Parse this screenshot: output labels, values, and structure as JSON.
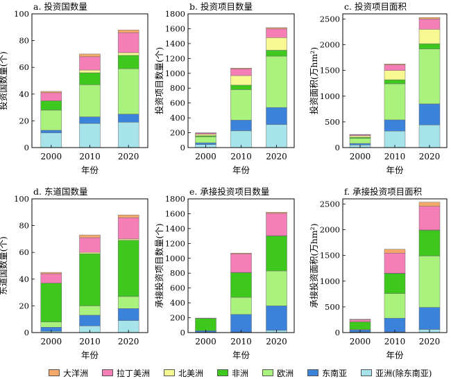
{
  "colors": {
    "oceania": "#f4a96b",
    "latin_america": "#f57eb6",
    "north_america": "#f8f893",
    "africa": "#3ec81e",
    "europe": "#a9f27e",
    "southeast_asia": "#3a82da",
    "asia_ex_sea": "#a6e4ea"
  },
  "legend": [
    {
      "label": "大洋洲",
      "color_key": "oceania"
    },
    {
      "label": "拉丁美洲",
      "color_key": "latin_america"
    },
    {
      "label": "北美洲",
      "color_key": "north_america"
    },
    {
      "label": "非洲",
      "color_key": "africa"
    },
    {
      "label": "欧洲",
      "color_key": "europe"
    },
    {
      "label": "东南亚",
      "color_key": "southeast_asia"
    },
    {
      "label": "亚洲(除东南亚)",
      "color_key": "asia_ex_sea"
    }
  ],
  "chart_data": [
    {
      "type": "bar",
      "stacked": true,
      "title": "a. 投资国数量",
      "xlabel": "年份",
      "ylabel": "投资国数量(个)",
      "categories": [
        "2000",
        "2010",
        "2020"
      ],
      "ylim": [
        0,
        100
      ],
      "yticks": [
        0,
        20,
        40,
        60,
        80,
        100
      ],
      "series": [
        {
          "name": "亚洲(除东南亚)",
          "color_key": "asia_ex_sea",
          "values": [
            11,
            18,
            19
          ]
        },
        {
          "name": "东南亚",
          "color_key": "southeast_asia",
          "values": [
            2,
            5,
            6
          ]
        },
        {
          "name": "欧洲",
          "color_key": "europe",
          "values": [
            15,
            24,
            34
          ]
        },
        {
          "name": "非洲",
          "color_key": "africa",
          "values": [
            7,
            9,
            10
          ]
        },
        {
          "name": "北美洲",
          "color_key": "north_america",
          "values": [
            0,
            2,
            2
          ]
        },
        {
          "name": "拉丁美洲",
          "color_key": "latin_america",
          "values": [
            6,
            10,
            15
          ]
        },
        {
          "name": "大洋洲",
          "color_key": "oceania",
          "values": [
            1,
            2,
            2
          ]
        }
      ]
    },
    {
      "type": "bar",
      "stacked": true,
      "title": "b. 投资项目数量",
      "xlabel": "年份",
      "ylabel": "投资项目数量(个)",
      "categories": [
        "2000",
        "2010",
        "2020"
      ],
      "ylim": [
        0,
        1800
      ],
      "yticks": [
        0,
        200,
        400,
        600,
        800,
        1000,
        1200,
        1400,
        1600,
        1800
      ],
      "series": [
        {
          "name": "亚洲(除东南亚)",
          "color_key": "asia_ex_sea",
          "values": [
            40,
            225,
            310
          ]
        },
        {
          "name": "东南亚",
          "color_key": "southeast_asia",
          "values": [
            25,
            145,
            230
          ]
        },
        {
          "name": "欧洲",
          "color_key": "europe",
          "values": [
            80,
            410,
            690
          ]
        },
        {
          "name": "非洲",
          "color_key": "africa",
          "values": [
            15,
            60,
            80
          ]
        },
        {
          "name": "北美洲",
          "color_key": "north_america",
          "values": [
            20,
            130,
            170
          ]
        },
        {
          "name": "拉丁美洲",
          "color_key": "latin_america",
          "values": [
            15,
            90,
            120
          ]
        },
        {
          "name": "大洋洲",
          "color_key": "oceania",
          "values": [
            5,
            10,
            15
          ]
        }
      ]
    },
    {
      "type": "bar",
      "stacked": true,
      "title": "c. 投资项目面积",
      "xlabel": "年份",
      "ylabel": "投资面积(万hm²)",
      "categories": [
        "2000",
        "2010",
        "2020"
      ],
      "ylim": [
        0,
        2600
      ],
      "yticks": [
        0,
        500,
        1000,
        1500,
        2000,
        2500
      ],
      "series": [
        {
          "name": "亚洲(除东南亚)",
          "color_key": "asia_ex_sea",
          "values": [
            50,
            320,
            440
          ]
        },
        {
          "name": "东南亚",
          "color_key": "southeast_asia",
          "values": [
            30,
            220,
            410
          ]
        },
        {
          "name": "欧洲",
          "color_key": "europe",
          "values": [
            100,
            700,
            1070
          ]
        },
        {
          "name": "非洲",
          "color_key": "africa",
          "values": [
            20,
            80,
            100
          ]
        },
        {
          "name": "北美洲",
          "color_key": "north_america",
          "values": [
            30,
            180,
            280
          ]
        },
        {
          "name": "拉丁美洲",
          "color_key": "latin_america",
          "values": [
            20,
            110,
            200
          ]
        },
        {
          "name": "大洋洲",
          "color_key": "oceania",
          "values": [
            5,
            15,
            30
          ]
        }
      ]
    },
    {
      "type": "bar",
      "stacked": true,
      "title": "d. 东道国数量",
      "xlabel": "年份",
      "ylabel": "东道国数量(个)",
      "categories": [
        "2000",
        "2010",
        "2020"
      ],
      "ylim": [
        0,
        100
      ],
      "yticks": [
        0,
        20,
        40,
        60,
        80,
        100
      ],
      "series": [
        {
          "name": "亚洲(除东南亚)",
          "color_key": "asia_ex_sea",
          "values": [
            1,
            5,
            9
          ]
        },
        {
          "name": "东南亚",
          "color_key": "southeast_asia",
          "values": [
            3,
            8,
            9
          ]
        },
        {
          "name": "欧洲",
          "color_key": "europe",
          "values": [
            4,
            7,
            9
          ]
        },
        {
          "name": "非洲",
          "color_key": "africa",
          "values": [
            29,
            39,
            42
          ]
        },
        {
          "name": "北美洲",
          "color_key": "north_america",
          "values": [
            0,
            1,
            1
          ]
        },
        {
          "name": "拉丁美洲",
          "color_key": "latin_america",
          "values": [
            7,
            11,
            16
          ]
        },
        {
          "name": "大洋洲",
          "color_key": "oceania",
          "values": [
            1,
            2,
            2
          ]
        }
      ]
    },
    {
      "type": "bar",
      "stacked": true,
      "title": "e. 承接投资项目数量",
      "xlabel": "年份",
      "ylabel": "承接投资项目数量(个)",
      "categories": [
        "2000",
        "2010",
        "2020"
      ],
      "ylim": [
        0,
        1800
      ],
      "yticks": [
        0,
        200,
        400,
        600,
        800,
        1000,
        1200,
        1400,
        1600,
        1800
      ],
      "series": [
        {
          "name": "亚洲(除东南亚)",
          "color_key": "asia_ex_sea",
          "values": [
            5,
            5,
            30
          ]
        },
        {
          "name": "东南亚",
          "color_key": "southeast_asia",
          "values": [
            20,
            240,
            330
          ]
        },
        {
          "name": "欧洲",
          "color_key": "europe",
          "values": [
            0,
            230,
            470
          ]
        },
        {
          "name": "非洲",
          "color_key": "africa",
          "values": [
            165,
            330,
            470
          ]
        },
        {
          "name": "北美洲",
          "color_key": "north_america",
          "values": [
            0,
            5,
            5
          ]
        },
        {
          "name": "拉丁美洲",
          "color_key": "latin_america",
          "values": [
            5,
            250,
            300
          ]
        },
        {
          "name": "大洋洲",
          "color_key": "oceania",
          "values": [
            0,
            10,
            15
          ]
        }
      ]
    },
    {
      "type": "bar",
      "stacked": true,
      "title": "f. 承接投资项目面积",
      "xlabel": "年份",
      "ylabel": "承接投资面积(万hm²)",
      "categories": [
        "2000",
        "2010",
        "2020"
      ],
      "ylim": [
        0,
        2600
      ],
      "yticks": [
        0,
        500,
        1000,
        1500,
        2000,
        2500
      ],
      "series": [
        {
          "name": "亚洲(除东南亚)",
          "color_key": "asia_ex_sea",
          "values": [
            10,
            10,
            60
          ]
        },
        {
          "name": "东南亚",
          "color_key": "southeast_asia",
          "values": [
            40,
            270,
            430
          ]
        },
        {
          "name": "欧洲",
          "color_key": "europe",
          "values": [
            10,
            480,
            1000
          ]
        },
        {
          "name": "非洲",
          "color_key": "africa",
          "values": [
            150,
            390,
            500
          ]
        },
        {
          "name": "北美洲",
          "color_key": "north_america",
          "values": [
            0,
            5,
            5
          ]
        },
        {
          "name": "拉丁美洲",
          "color_key": "latin_america",
          "values": [
            40,
            390,
            460
          ]
        },
        {
          "name": "大洋洲",
          "color_key": "oceania",
          "values": [
            10,
            75,
            80
          ]
        }
      ]
    }
  ]
}
